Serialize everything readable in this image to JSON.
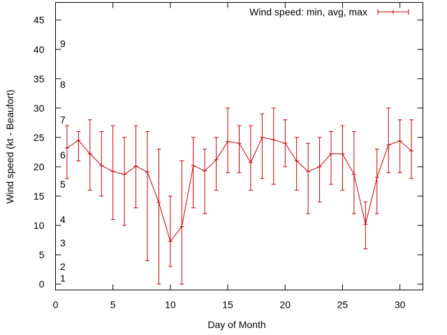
{
  "chart_data": {
    "type": "line",
    "title": "",
    "xlabel": "Day of Month",
    "ylabel": "Wind speed (kt - Beaufort)",
    "xlim": [
      0,
      32
    ],
    "ylim": [
      -1,
      48
    ],
    "x_ticks": [
      0,
      5,
      10,
      15,
      20,
      25,
      30
    ],
    "y_ticks": [
      0,
      5,
      10,
      15,
      20,
      25,
      30,
      35,
      40,
      45
    ],
    "beaufort_labels": [
      {
        "value": 1,
        "label": "1"
      },
      {
        "value": 3,
        "label": "2"
      },
      {
        "value": 7,
        "label": "3"
      },
      {
        "value": 11,
        "label": "4"
      },
      {
        "value": 17,
        "label": "5"
      },
      {
        "value": 22,
        "label": "6"
      },
      {
        "value": 28,
        "label": "7"
      },
      {
        "value": 34,
        "label": "8"
      },
      {
        "value": 41,
        "label": "9"
      }
    ],
    "legend_position": "top-right",
    "grid": false,
    "series": [
      {
        "name": "Wind speed: min, avg, max",
        "color": "#cc0000",
        "x": [
          1,
          2,
          3,
          4,
          5,
          6,
          7,
          8,
          9,
          10,
          11,
          12,
          13,
          14,
          15,
          16,
          17,
          18,
          19,
          20,
          21,
          22,
          23,
          24,
          25,
          26,
          27,
          28,
          29,
          30,
          31
        ],
        "avg": [
          23.2,
          24.5,
          22.2,
          20.2,
          19.2,
          18.7,
          20.1,
          19.1,
          13.9,
          7.3,
          9.8,
          20.2,
          19.3,
          21.2,
          24.3,
          24.0,
          20.7,
          25.0,
          24.6,
          24.0,
          21.0,
          19.2,
          20.0,
          22.2,
          22.2,
          18.7,
          10.2,
          18.2,
          23.7,
          24.4,
          22.7
        ],
        "min": [
          18,
          21,
          16,
          15,
          11,
          10,
          13,
          4,
          0,
          3,
          0,
          13,
          12,
          16,
          19,
          19,
          16,
          18,
          17,
          20,
          16,
          12,
          14,
          17,
          16,
          12,
          6,
          12,
          19,
          19,
          18
        ],
        "max": [
          27,
          26,
          28,
          26,
          27,
          25,
          27,
          26,
          23,
          15,
          21,
          25,
          23,
          25,
          30,
          27,
          27,
          29,
          30,
          28,
          25,
          24,
          25,
          26,
          27,
          26,
          14,
          23,
          30,
          28,
          28
        ]
      }
    ]
  }
}
